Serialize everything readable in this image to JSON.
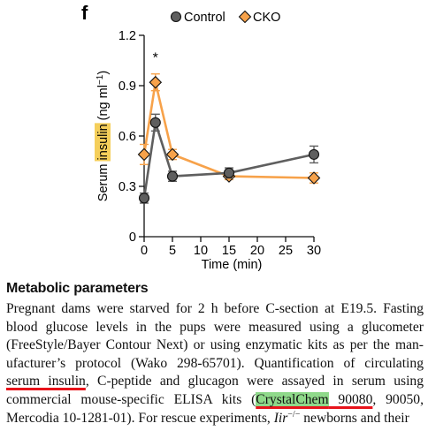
{
  "panel_label": "f",
  "chart_data": {
    "type": "line",
    "xlabel": "Time (min)",
    "ylabel_before": "Serum ",
    "ylabel_highlight": "insulin",
    "ylabel_after": " (ng ml",
    "ylabel_exp": "−1",
    "ylabel_close": ")",
    "x_ticks": [
      "0",
      "5",
      "10",
      "15",
      "20",
      "25",
      "30"
    ],
    "y_ticks": [
      "0",
      "0.3",
      "0.6",
      "0.9",
      "1.2"
    ],
    "xlim": [
      0,
      30
    ],
    "ylim": [
      0,
      1.2
    ],
    "highlight_color": "#f5cf5b",
    "annotation": {
      "text": "*",
      "x": 2,
      "y": 1.04
    },
    "series": [
      {
        "name": "Control",
        "color": "#5f5f5f",
        "marker": "circle",
        "x": [
          0,
          2,
          5,
          15,
          30
        ],
        "y": [
          0.23,
          0.68,
          0.36,
          0.38,
          0.49
        ],
        "err": [
          0.03,
          0.05,
          0.03,
          0.03,
          0.05
        ]
      },
      {
        "name": "CKO",
        "color": "#f7a24a",
        "marker": "diamond",
        "x": [
          0,
          2,
          5,
          15,
          30
        ],
        "y": [
          0.49,
          0.92,
          0.49,
          0.36,
          0.35
        ],
        "err": [
          0.06,
          0.05,
          0.03,
          0.02,
          0.03
        ]
      }
    ]
  },
  "document": {
    "heading": "Metabolic parameters",
    "line1": "Pregnant dams were starved for 2 h before C-section at E19.5. Fasting",
    "line2": "blood glucose levels in the pups were measured using a glucometer",
    "line3": "(FreeStyle/Bayer Contour Next) or using enzymatic kits as per the man-",
    "line4": "ufacturer’s protocol (Wako 298-65701). Quantification of circulating",
    "line5_u": "serum insulin",
    "line5_rest": ", C-peptide and glucagon were assayed in serum using",
    "line6_pre": "commercial mouse-specific ELISA kits (",
    "line6_hl": "CrystalChem",
    "line6_ul": " 90080",
    "line6_post": ", 90050,",
    "line7_pre": "Mercodia 10-1281-01). For rescue experiments, ",
    "line7_gene": "Iir",
    "line7_sup": "−/−",
    "line7_post": " newborns and their",
    "colors": {
      "underline": "#e8131b",
      "highlight": "#8fd98a"
    }
  }
}
